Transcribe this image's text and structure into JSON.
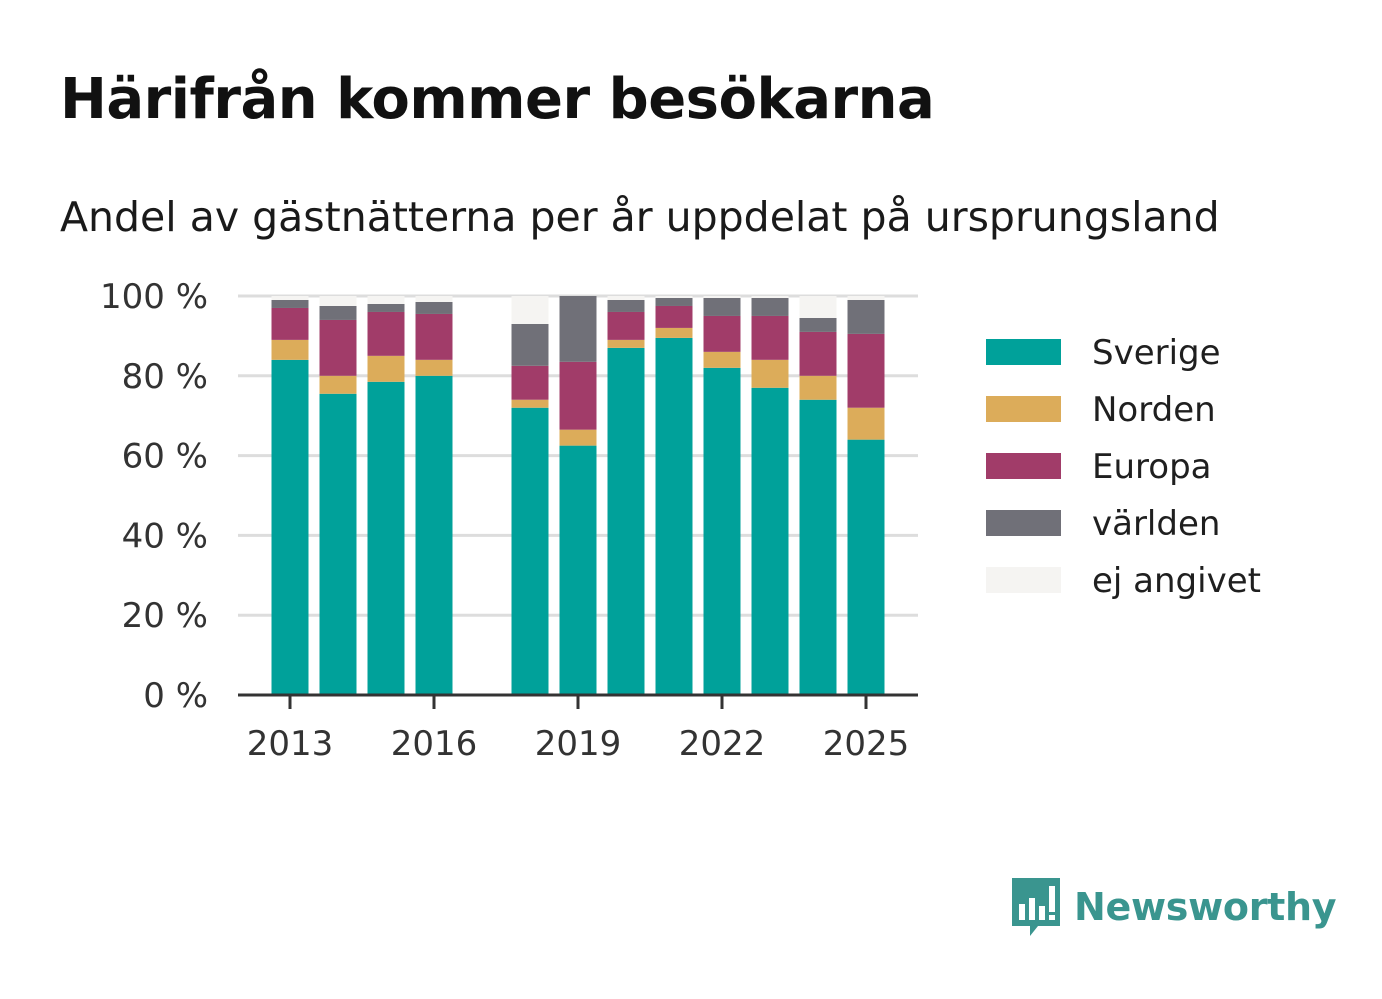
{
  "title": "Härifrån kommer besökarna",
  "subtitle": "Andel av gästnätterna per år uppdelat på ursprungsland",
  "colors": {
    "Sverige": "#00a19a",
    "Norden": "#dcac5a",
    "Europa": "#a13c69",
    "världen": "#707078",
    "ej angivet": "#f5f4f2"
  },
  "chart_data": {
    "type": "bar",
    "stacked": true,
    "categories": [
      2013,
      2014,
      2015,
      2016,
      2017,
      2018,
      2019,
      2020,
      2021,
      2022,
      2023,
      2024,
      2025
    ],
    "series": [
      {
        "name": "Sverige",
        "values": [
          84,
          75.5,
          78.5,
          80,
          null,
          72,
          62.5,
          87,
          89.5,
          82,
          77,
          74,
          64
        ]
      },
      {
        "name": "Norden",
        "values": [
          5,
          4.5,
          6.5,
          4,
          null,
          2,
          4,
          2,
          2.5,
          4,
          7,
          6,
          8
        ]
      },
      {
        "name": "Europa",
        "values": [
          8,
          14,
          11,
          11.5,
          null,
          8.5,
          17,
          7,
          5.5,
          9,
          11,
          11,
          18.5
        ]
      },
      {
        "name": "världen",
        "values": [
          2,
          3.5,
          2,
          3,
          null,
          10.5,
          16.5,
          3,
          2,
          4.5,
          4.5,
          3.5,
          8.5
        ]
      },
      {
        "name": "ej angivet",
        "values": [
          1,
          2.5,
          2,
          1.5,
          null,
          7,
          0,
          1,
          0.5,
          0.5,
          0.5,
          5.5,
          1
        ]
      }
    ],
    "xticks": [
      "2013",
      "2016",
      "2019",
      "2022",
      "2025"
    ],
    "yticks": [
      "0 %",
      "20 %",
      "40 %",
      "60 %",
      "80 %",
      "100 %"
    ],
    "ylim": [
      0,
      100
    ],
    "xlabel": "",
    "ylabel": "",
    "grid": true,
    "legend_position": "right"
  },
  "brand": {
    "name": "Newsworthy",
    "icon": "newsworthy-logo-icon"
  }
}
